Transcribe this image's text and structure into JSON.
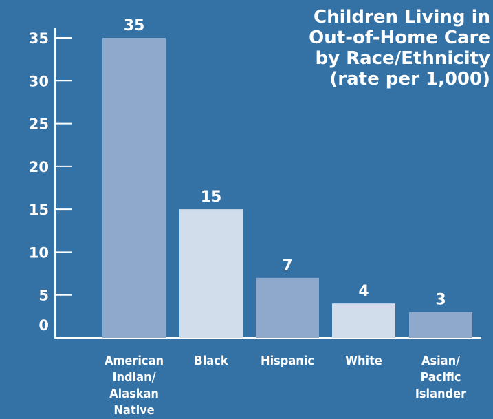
{
  "chart_data": {
    "type": "bar",
    "title_lines": [
      "Children Living in",
      "Out-of-Home Care",
      "by Race/Ethnicity",
      "(rate per 1,000)"
    ],
    "xlabel": "",
    "ylabel": "",
    "categories": [
      [
        "American",
        "Indian/",
        "Alaskan",
        "Native"
      ],
      [
        "Black"
      ],
      [
        "Hispanic"
      ],
      [
        "White"
      ],
      [
        "Asian/",
        "Pacific",
        "Islander"
      ]
    ],
    "values": [
      35,
      15,
      7,
      4,
      3
    ],
    "data_labels": [
      "35",
      "15",
      "7",
      "4",
      "3"
    ],
    "yticks": [
      0,
      5,
      10,
      15,
      20,
      25,
      30,
      35
    ],
    "ytick_labels": [
      "0",
      "5",
      "10",
      "15",
      "20",
      "25",
      "30",
      "35"
    ],
    "ylim": [
      0,
      35
    ],
    "grid": false,
    "legend": "none",
    "colors": {
      "background": "#3471a5",
      "bar_dark": "#8fa9cc",
      "bar_light": "#d2ddec",
      "axis": "#ffffff",
      "text": "#ffffff"
    }
  }
}
